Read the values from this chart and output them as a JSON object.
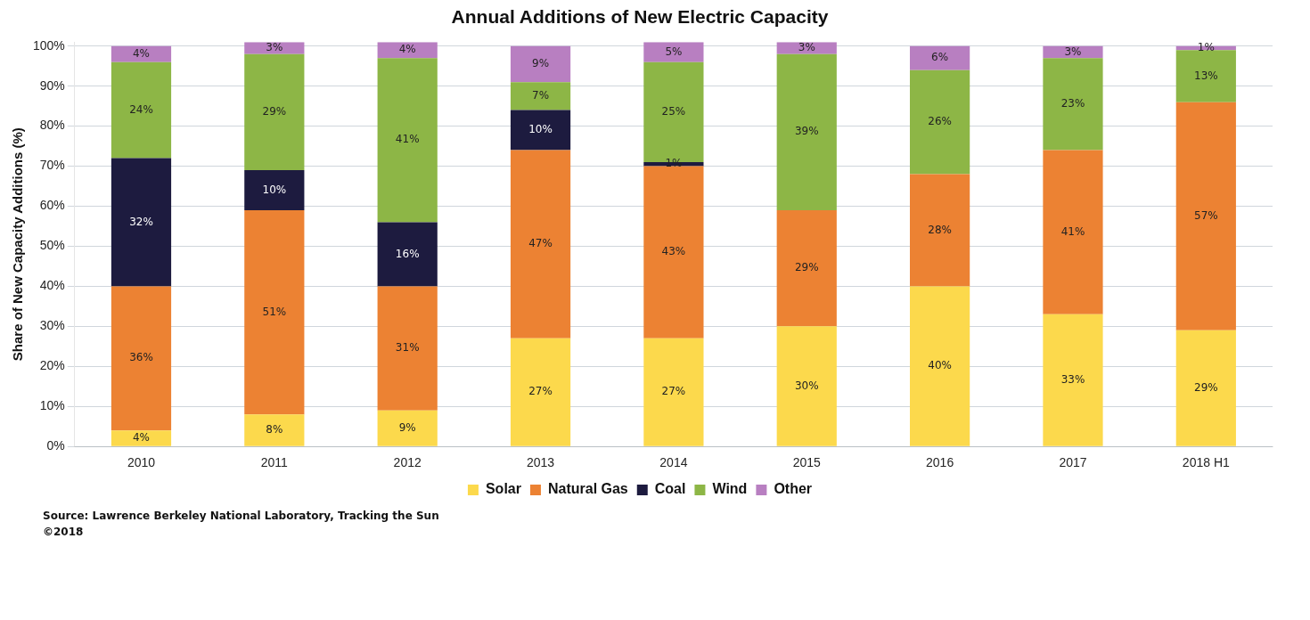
{
  "chart_data": {
    "type": "bar",
    "title": "Annual Additions of New Electric Capacity",
    "ylabel": "Share of New Capacity Additions (%)",
    "stacked": true,
    "categories": [
      "2010",
      "2011",
      "2012",
      "2013",
      "2014",
      "2015",
      "2016",
      "2017",
      "2018 H1"
    ],
    "series": [
      {
        "name": "Solar",
        "color": "#fcd94c",
        "values": [
          4,
          8,
          9,
          27,
          27,
          30,
          40,
          33,
          29
        ],
        "value_labels": [
          "4%",
          "8%",
          "9%",
          "27%",
          "27%",
          "30%",
          "40%",
          "33%",
          "29%"
        ]
      },
      {
        "name": "Natural Gas",
        "color": "#ec8233",
        "values": [
          36,
          51,
          31,
          47,
          43,
          29,
          28,
          41,
          57
        ],
        "value_labels": [
          "36%",
          "51%",
          "31%",
          "47%",
          "43%",
          "29%",
          "28%",
          "41%",
          "57%"
        ]
      },
      {
        "name": "Coal",
        "color": "#1d1b3f",
        "values": [
          32,
          10,
          16,
          10,
          1,
          0,
          0,
          0,
          0
        ],
        "value_labels": [
          "32%",
          "10%",
          "16%",
          "10%",
          "1%",
          null,
          null,
          null,
          null
        ]
      },
      {
        "name": "Wind",
        "color": "#8db646",
        "values": [
          24,
          29,
          41,
          7,
          25,
          39,
          26,
          23,
          13
        ],
        "value_labels": [
          "24%",
          "29%",
          "41%",
          "7%",
          "25%",
          "39%",
          "26%",
          "23%",
          "13%"
        ]
      },
      {
        "name": "Other",
        "color": "#b87fc1",
        "values": [
          4,
          3,
          4,
          9,
          5,
          3,
          6,
          3,
          1
        ],
        "value_labels": [
          "4%",
          "3%",
          "4%",
          "9%",
          "5%",
          "3%",
          "6%",
          "3%",
          "1%"
        ]
      }
    ],
    "ylim": [
      0,
      101
    ],
    "yticks": [
      {
        "value": 0,
        "label": "0%"
      },
      {
        "value": 10,
        "label": "10%"
      },
      {
        "value": 20,
        "label": "20%"
      },
      {
        "value": 30,
        "label": "30%"
      },
      {
        "value": 40,
        "label": "40%"
      },
      {
        "value": 50,
        "label": "50%"
      },
      {
        "value": 60,
        "label": "60%"
      },
      {
        "value": 70,
        "label": "70%"
      },
      {
        "value": 80,
        "label": "80%"
      },
      {
        "value": 90,
        "label": "90%"
      },
      {
        "value": 100,
        "label": "100%"
      }
    ],
    "grid": "y",
    "legend": "bottom",
    "annotations": [
      "Source: Lawrence Berkeley National Laboratory, Tracking the Sun",
      "©2018"
    ]
  }
}
